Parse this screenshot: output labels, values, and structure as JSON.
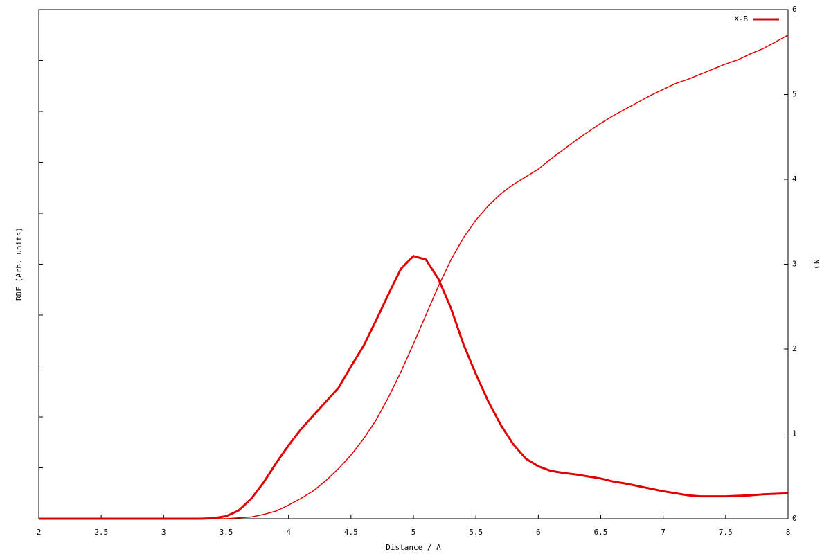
{
  "chart_data": {
    "type": "line",
    "x_label": "Distance / A",
    "y_label": "RDF (Arb. units)",
    "y2_label": "CN",
    "x": [
      2.0,
      3.3,
      3.4,
      3.5,
      3.6,
      3.7,
      3.8,
      3.9,
      4.0,
      4.1,
      4.2,
      4.3,
      4.4,
      4.5,
      4.6,
      4.7,
      4.8,
      4.9,
      5.0,
      5.1,
      5.2,
      5.3,
      5.4,
      5.5,
      5.6,
      5.7,
      5.8,
      5.9,
      6.0,
      6.1,
      6.2,
      6.3,
      6.4,
      6.5,
      6.6,
      6.7,
      6.8,
      6.9,
      7.0,
      7.1,
      7.2,
      7.3,
      7.4,
      7.5,
      7.6,
      7.7,
      7.8,
      7.9,
      8.0
    ],
    "series": [
      {
        "name": "X-B",
        "color": "#e00000",
        "width": 3,
        "values": [
          0,
          0,
          0.01,
          0.05,
          0.16,
          0.39,
          0.71,
          1.09,
          1.44,
          1.76,
          2.03,
          2.3,
          2.57,
          2.99,
          3.39,
          3.89,
          4.41,
          4.91,
          5.16,
          5.09,
          4.71,
          4.14,
          3.43,
          2.84,
          2.3,
          1.84,
          1.46,
          1.18,
          1.03,
          0.94,
          0.9,
          0.87,
          0.83,
          0.79,
          0.73,
          0.69,
          0.64,
          0.59,
          0.54,
          0.5,
          0.46,
          0.44,
          0.44,
          0.44,
          0.45,
          0.46,
          0.48,
          0.49,
          0.5
        ]
      },
      {
        "axis": "y2",
        "color": "#e00000",
        "width": 1.5,
        "values": [
          0,
          0,
          0,
          0,
          0.01,
          0.02,
          0.05,
          0.09,
          0.16,
          0.24,
          0.33,
          0.45,
          0.59,
          0.75,
          0.94,
          1.16,
          1.43,
          1.73,
          2.06,
          2.4,
          2.74,
          3.05,
          3.31,
          3.52,
          3.69,
          3.83,
          3.94,
          4.03,
          4.12,
          4.24,
          4.35,
          4.46,
          4.56,
          4.66,
          4.75,
          4.83,
          4.91,
          4.99,
          5.06,
          5.13,
          5.18,
          5.24,
          5.3,
          5.36,
          5.41,
          5.48,
          5.54,
          5.62,
          5.7
        ]
      }
    ],
    "xlim": [
      2,
      8
    ],
    "xticks": [
      2,
      2.5,
      3,
      3.5,
      4,
      4.5,
      5,
      5.5,
      6,
      6.5,
      7,
      7.5,
      8
    ],
    "ylim": [
      0,
      10
    ],
    "yticks": [
      1,
      2,
      3,
      4,
      5,
      6,
      7,
      8,
      9
    ],
    "ytick_labels": false,
    "y2lim": [
      0,
      6
    ],
    "y2ticks": [
      0,
      1,
      2,
      3,
      4,
      5,
      6
    ],
    "legend": "top-right",
    "grid": false
  }
}
